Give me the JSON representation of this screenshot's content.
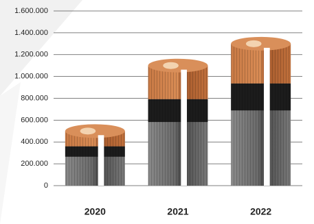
{
  "chart_data": {
    "type": "bar",
    "categories": [
      "2020",
      "2021",
      "2022"
    ],
    "values": [
      500000,
      1100000,
      1300000
    ],
    "ylim": [
      0,
      1600000
    ],
    "yticks": [
      0,
      {
        "value": 200000,
        "label": "200.000"
      },
      {
        "value": 400000,
        "label": "400.000"
      },
      {
        "value": 600000,
        "label": "600.000"
      },
      {
        "value": 800000,
        "label": "800.000"
      },
      {
        "value": 1000000,
        "label": "1.000.000"
      },
      {
        "value": 1200000,
        "label": "1.200.000"
      },
      {
        "value": 1400000,
        "label": "1.400.000"
      },
      {
        "value": 1600000,
        "label": "1.600.000"
      }
    ],
    "grid": true
  }
}
